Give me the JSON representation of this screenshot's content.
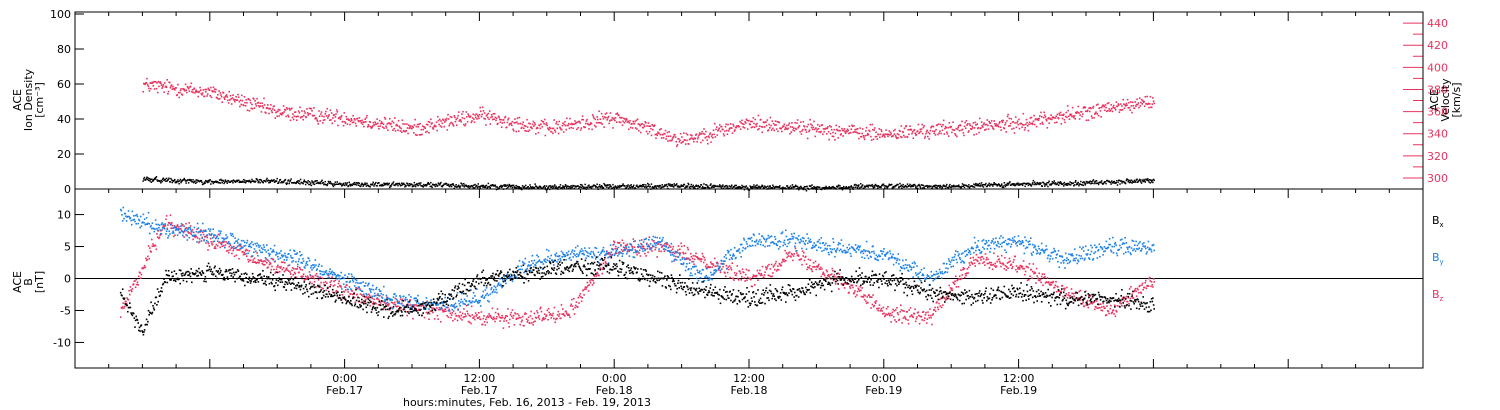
{
  "chart_data": [
    {
      "type": "scatter",
      "panel": "top",
      "ylabel_left_lines": [
        "ACE",
        "Ion Density",
        "[cm⁻³]"
      ],
      "ylabel_right_lines": [
        "ACE",
        "Velocity",
        "[km/s]"
      ],
      "ylim_left": [
        0,
        100
      ],
      "ylim_right": [
        290,
        450
      ],
      "yticks_left": [
        "0",
        "20",
        "40",
        "60",
        "80",
        "100"
      ],
      "yticks_right": [
        "300",
        "320",
        "340",
        "360",
        "380",
        "400",
        "420",
        "440"
      ],
      "colors": {
        "density": "#000000",
        "velocity": "#e8335f"
      },
      "series": [
        {
          "axis": "left",
          "x": [
            -18,
            -12,
            -6,
            0,
            6,
            12,
            18,
            24,
            30,
            36,
            42,
            48,
            54,
            60,
            66,
            72
          ],
          "y": [
            6,
            4.5,
            5,
            3,
            3,
            2,
            1.5,
            2,
            2,
            1.5,
            1,
            2,
            2,
            3,
            4,
            5
          ]
        },
        {
          "axis": "right",
          "x": [
            -18,
            -12,
            -6,
            0,
            6,
            12,
            18,
            24,
            30,
            36,
            42,
            48,
            54,
            60,
            66,
            72
          ],
          "y": [
            385,
            378,
            360,
            355,
            345,
            357,
            345,
            355,
            335,
            350,
            345,
            340,
            345,
            350,
            360,
            370
          ]
        }
      ]
    },
    {
      "type": "scatter",
      "panel": "bottom",
      "ylabel_lines": [
        "ACE",
        "B",
        "[nT]"
      ],
      "ylim": [
        -14,
        14
      ],
      "yticks": [
        "-10",
        "-5",
        "0",
        "5",
        "10"
      ],
      "legend_placement": "right",
      "legend": [
        {
          "main": "B",
          "sub": "x",
          "color": "#000000"
        },
        {
          "main": "B",
          "sub": "y",
          "color": "#1c82e6"
        },
        {
          "main": "B",
          "sub": "z",
          "color": "#e8335f"
        }
      ],
      "series": [
        {
          "component": "x",
          "x": [
            -20,
            -18,
            -16,
            -14,
            -12,
            -8,
            -4,
            0,
            4,
            8,
            12,
            16,
            20,
            24,
            28,
            32,
            36,
            40,
            44,
            48,
            52,
            56,
            60,
            64,
            68,
            72
          ],
          "y": [
            -2,
            -8,
            0,
            1,
            1,
            0,
            -1,
            -3,
            -5,
            -4,
            0,
            1,
            2,
            2,
            0,
            -2,
            -3,
            -2,
            0,
            0,
            -2,
            -3,
            -2,
            -3,
            -3,
            -4
          ]
        },
        {
          "component": "y",
          "x": [
            -20,
            -16,
            -12,
            -8,
            -4,
            0,
            4,
            8,
            12,
            16,
            20,
            24,
            28,
            32,
            36,
            40,
            44,
            48,
            52,
            56,
            60,
            64,
            68,
            72
          ],
          "y": [
            10,
            8,
            7,
            5,
            3,
            0,
            -3,
            -4,
            -3,
            2,
            4,
            4,
            6,
            0,
            6,
            6,
            5,
            4,
            0,
            5,
            6,
            3,
            5,
            5
          ]
        },
        {
          "component": "z",
          "x": [
            -20,
            -16,
            -12,
            -8,
            -4,
            0,
            4,
            8,
            12,
            16,
            20,
            24,
            28,
            32,
            36,
            40,
            44,
            48,
            52,
            56,
            60,
            64,
            68,
            72
          ],
          "y": [
            -5,
            9,
            6,
            3,
            1,
            -2,
            -4,
            -5,
            -6,
            -6,
            -5,
            5,
            5,
            3,
            0,
            4,
            0,
            -5,
            -6,
            3,
            2,
            -2,
            -5,
            0
          ]
        }
      ]
    }
  ],
  "x_axis": {
    "xlim": [
      -24,
      96
    ],
    "ticks": [
      {
        "x": 0,
        "time": "0:00",
        "date": "Feb.17"
      },
      {
        "x": 12,
        "time": "12:00",
        "date": "Feb.17"
      },
      {
        "x": 24,
        "time": "0:00",
        "date": "Feb.18"
      },
      {
        "x": 36,
        "time": "12:00",
        "date": "Feb.18"
      },
      {
        "x": 48,
        "time": "0:00",
        "date": "Feb.19"
      },
      {
        "x": 60,
        "time": "12:00",
        "date": "Feb.19"
      }
    ],
    "label": "hours:minutes, Feb. 16, 2013 - Feb. 19, 2013"
  }
}
